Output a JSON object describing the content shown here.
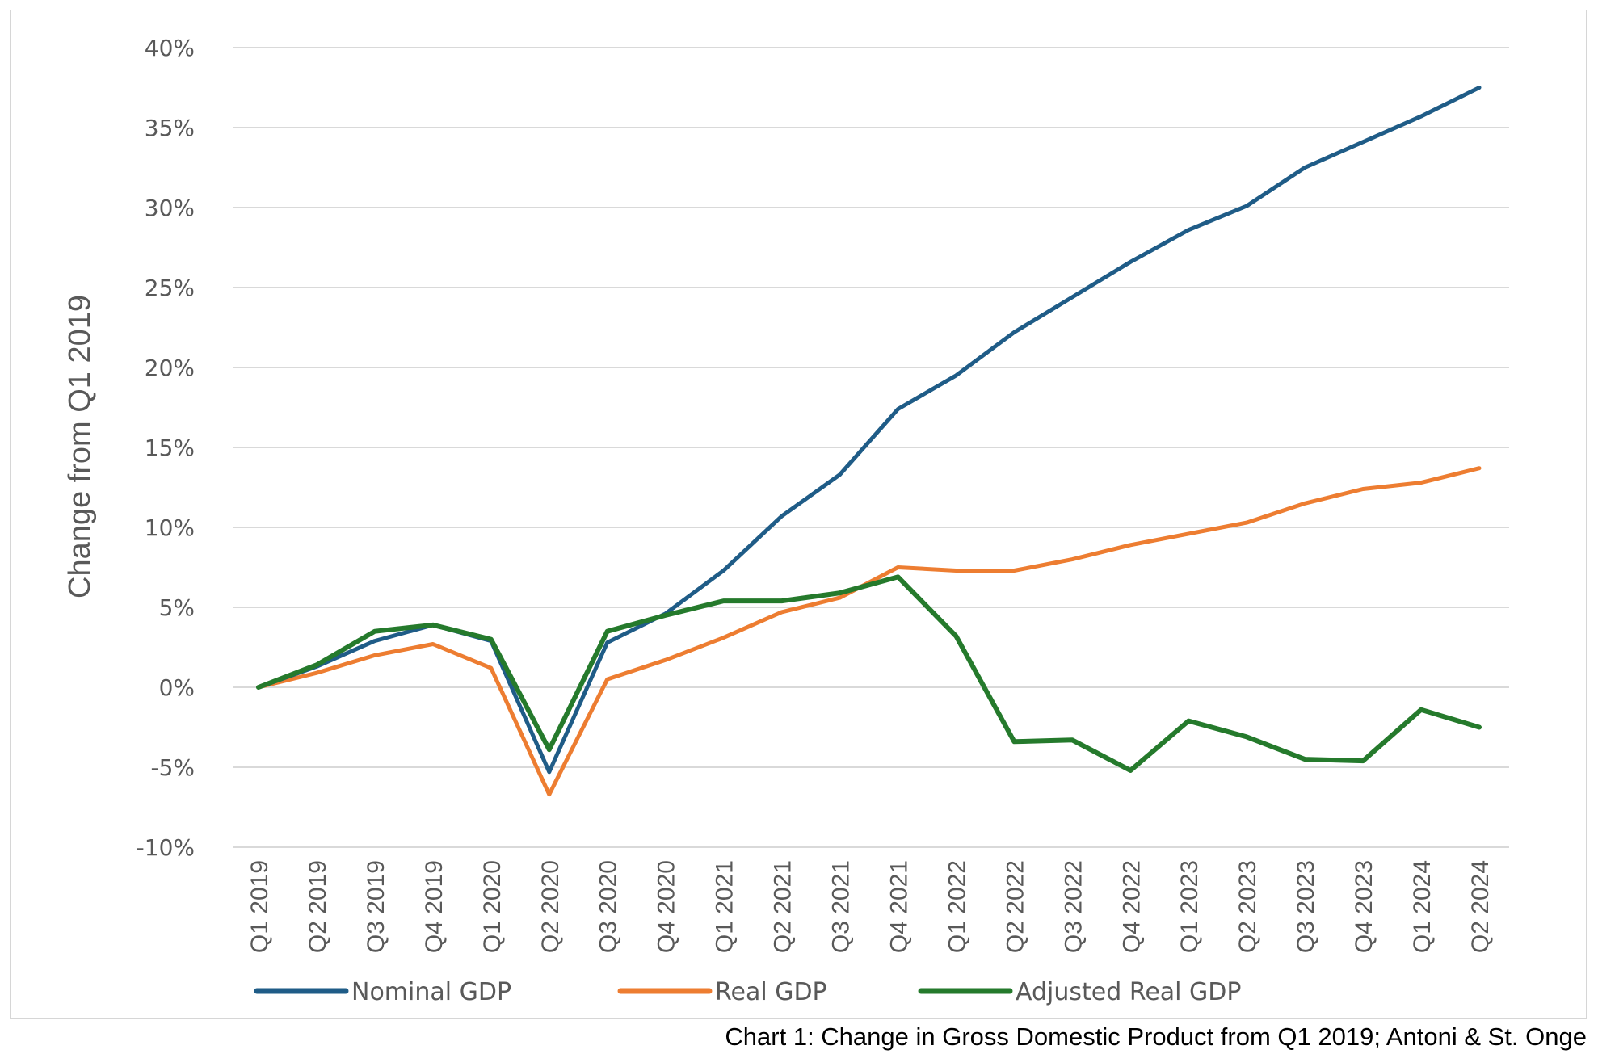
{
  "caption": "Chart 1: Change in Gross Domestic Product from Q1 2019; Antoni & St. Onge",
  "chart_data": {
    "type": "line",
    "title": "",
    "ylabel": "Change from Q1 2019",
    "xlabel": "",
    "ylim": [
      -10,
      40
    ],
    "yticks": [
      40,
      35,
      30,
      25,
      20,
      15,
      10,
      5,
      0,
      -5,
      -10
    ],
    "ytick_labels": [
      "40%",
      "35%",
      "30%",
      "25%",
      "20%",
      "15%",
      "10%",
      "5%",
      "0%",
      "-5%",
      "-10%"
    ],
    "grid": true,
    "legend_position": "bottom",
    "categories": [
      "Q1 2019",
      "Q2 2019",
      "Q3 2019",
      "Q4 2019",
      "Q1 2020",
      "Q2 2020",
      "Q3 2020",
      "Q4 2020",
      "Q1 2021",
      "Q2 2021",
      "Q3 2021",
      "Q4 2021",
      "Q1 2022",
      "Q2 2022",
      "Q3 2022",
      "Q4 2022",
      "Q1 2023",
      "Q2 2023",
      "Q3 2023",
      "Q4 2023",
      "Q1 2024",
      "Q2 2024"
    ],
    "series": [
      {
        "name": "Nominal GDP",
        "color": "#1f5c87",
        "values": [
          0,
          1.3,
          2.9,
          3.9,
          2.9,
          -5.3,
          2.8,
          4.6,
          7.3,
          10.7,
          13.3,
          17.4,
          19.5,
          22.2,
          24.4,
          26.6,
          28.6,
          30.1,
          32.5,
          34.1,
          35.7,
          37.5
        ]
      },
      {
        "name": "Real GDP",
        "color": "#ed7d31",
        "values": [
          0,
          0.9,
          2.0,
          2.7,
          1.2,
          -6.7,
          0.5,
          1.7,
          3.1,
          4.7,
          5.6,
          7.5,
          7.3,
          7.3,
          8.0,
          8.9,
          9.6,
          10.3,
          11.5,
          12.4,
          12.8,
          13.7
        ]
      },
      {
        "name": "Adjusted Real GDP",
        "color": "#257a2c",
        "values": [
          0,
          1.4,
          3.5,
          3.9,
          3.0,
          -3.9,
          3.5,
          4.5,
          5.4,
          5.4,
          5.9,
          6.9,
          3.2,
          -3.4,
          -3.3,
          -5.2,
          -2.1,
          -3.1,
          -4.5,
          -4.6,
          -1.4,
          -2.5
        ]
      }
    ]
  }
}
